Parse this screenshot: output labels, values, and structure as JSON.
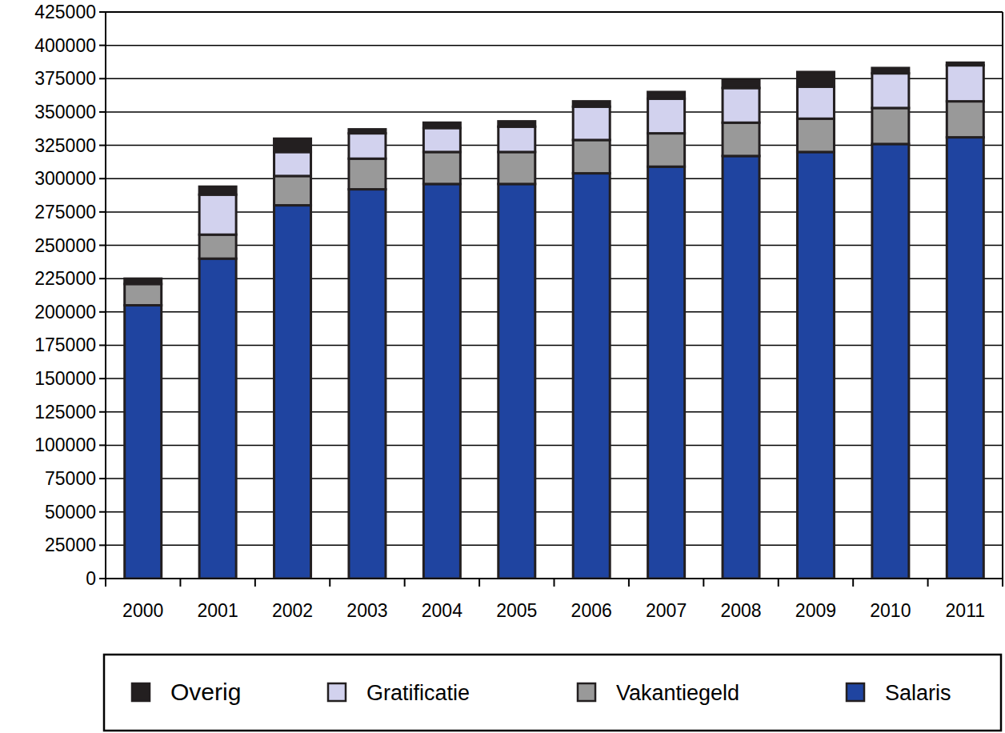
{
  "chart_data": {
    "type": "bar",
    "stacked": true,
    "grid": true,
    "legend": "bottom",
    "categories": [
      "2000",
      "2001",
      "2002",
      "2003",
      "2004",
      "2005",
      "2006",
      "2007",
      "2008",
      "2009",
      "2010",
      "2011"
    ],
    "series": [
      {
        "name": "Salaris",
        "color": "#1f44a0",
        "values": [
          205000,
          240000,
          280000,
          292000,
          296000,
          296000,
          304000,
          309000,
          317000,
          320000,
          326000,
          331000
        ]
      },
      {
        "name": "Vakantiegeld",
        "color": "#999999",
        "values": [
          16000,
          18000,
          22000,
          23000,
          24000,
          24000,
          25000,
          25000,
          25000,
          25000,
          27000,
          27000
        ]
      },
      {
        "name": "Gratificatie",
        "color": "#d2d2ee",
        "values": [
          0,
          30000,
          18000,
          19000,
          18000,
          19000,
          25000,
          26000,
          26000,
          24000,
          26000,
          27000
        ]
      },
      {
        "name": "Overig",
        "color": "#231f20",
        "values": [
          4000,
          6000,
          10000,
          3000,
          4000,
          4000,
          4000,
          5000,
          6000,
          11000,
          4000,
          2000
        ]
      }
    ],
    "ylim": [
      0,
      425000
    ],
    "yticks": [
      0,
      25000,
      50000,
      75000,
      100000,
      125000,
      150000,
      175000,
      200000,
      225000,
      250000,
      275000,
      300000,
      325000,
      350000,
      375000,
      400000,
      425000
    ]
  }
}
